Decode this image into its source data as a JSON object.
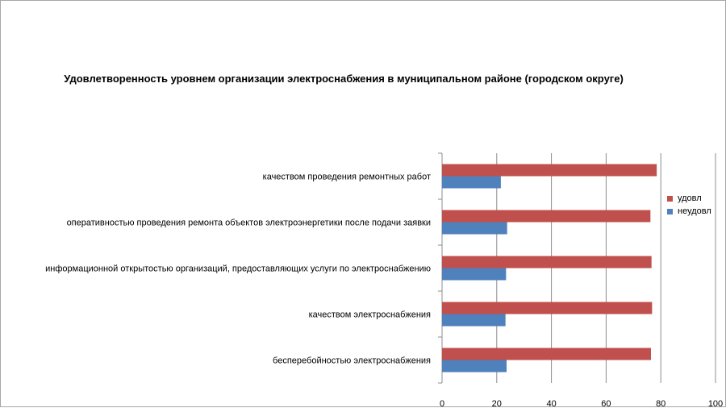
{
  "chart_data": {
    "type": "bar",
    "orientation": "horizontal",
    "title": "Удовлетворенность уровнем организации электроснабжения в муниципальном районе (городском округе)",
    "categories": [
      "качеством проведения ремонтных работ",
      "оперативностью проведения ремонта объектов электроэнергетики после подачи заявки",
      "информационной открытостью организаций, предоставляющих услуги по электроснабжению",
      "качеством электроснабжения",
      "бесперебойностью электроснабжения"
    ],
    "series": [
      {
        "name": "удовл",
        "color": "#c0504d",
        "values": [
          78.5,
          76.2,
          76.6,
          76.8,
          76.4
        ]
      },
      {
        "name": "неудовл",
        "color": "#4f81bd",
        "values": [
          21.5,
          23.8,
          23.4,
          23.2,
          23.6
        ]
      }
    ],
    "xlim": [
      0,
      100
    ],
    "xticks": [
      "0",
      "20",
      "40",
      "60",
      "80",
      "100"
    ],
    "grid": true,
    "legend": "right"
  }
}
